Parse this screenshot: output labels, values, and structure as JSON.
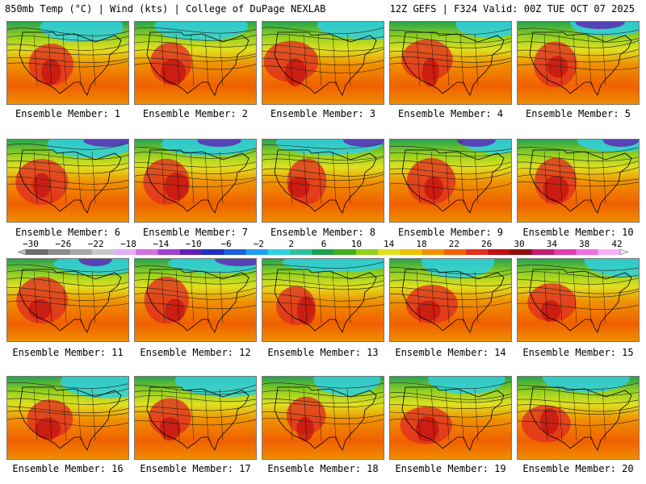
{
  "header": {
    "left": "850mb Temp (°C) | Wind (kts) | College of DuPage NEXLAB",
    "right": "12Z GEFS | F324 Valid: 00Z TUE OCT 07 2025"
  },
  "panels": [
    {
      "member": 1,
      "label": "Ensemble Member: 1"
    },
    {
      "member": 2,
      "label": "Ensemble Member: 2"
    },
    {
      "member": 3,
      "label": "Ensemble Member: 3"
    },
    {
      "member": 4,
      "label": "Ensemble Member: 4"
    },
    {
      "member": 5,
      "label": "Ensemble Member: 5"
    },
    {
      "member": 6,
      "label": "Ensemble Member: 6"
    },
    {
      "member": 7,
      "label": "Ensemble Member: 7"
    },
    {
      "member": 8,
      "label": "Ensemble Member: 8"
    },
    {
      "member": 9,
      "label": "Ensemble Member: 9"
    },
    {
      "member": 10,
      "label": "Ensemble Member: 10"
    },
    {
      "member": 11,
      "label": "Ensemble Member: 11"
    },
    {
      "member": 12,
      "label": "Ensemble Member: 12"
    },
    {
      "member": 13,
      "label": "Ensemble Member: 13"
    },
    {
      "member": 14,
      "label": "Ensemble Member: 14"
    },
    {
      "member": 15,
      "label": "Ensemble Member: 15"
    },
    {
      "member": 16,
      "label": "Ensemble Member: 16"
    },
    {
      "member": 17,
      "label": "Ensemble Member: 17"
    },
    {
      "member": 18,
      "label": "Ensemble Member: 18"
    },
    {
      "member": 19,
      "label": "Ensemble Member: 19"
    },
    {
      "member": 20,
      "label": "Ensemble Member: 20"
    }
  ],
  "colorbar": {
    "tick_labels": [
      "−30",
      "−26",
      "−22",
      "−18",
      "−14",
      "−10",
      "−6",
      "−2",
      "2",
      "6",
      "10",
      "14",
      "18",
      "22",
      "26",
      "30",
      "34",
      "38",
      "42"
    ],
    "colors": [
      "#6e6e6e",
      "#8c8c8c",
      "#a8a8a8",
      "#c8c8c8",
      "#e0b0f0",
      "#d070e0",
      "#a040d0",
      "#6020b0",
      "#2030c0",
      "#2060e0",
      "#20a0f0",
      "#30d0e0",
      "#30c0a0",
      "#20a050",
      "#40b020",
      "#90d020",
      "#e0e020",
      "#f0c000",
      "#f09000",
      "#f06000",
      "#e03020",
      "#c01010",
      "#901010",
      "#c02070",
      "#e040b0",
      "#f070e0",
      "#f8b0f8"
    ]
  }
}
